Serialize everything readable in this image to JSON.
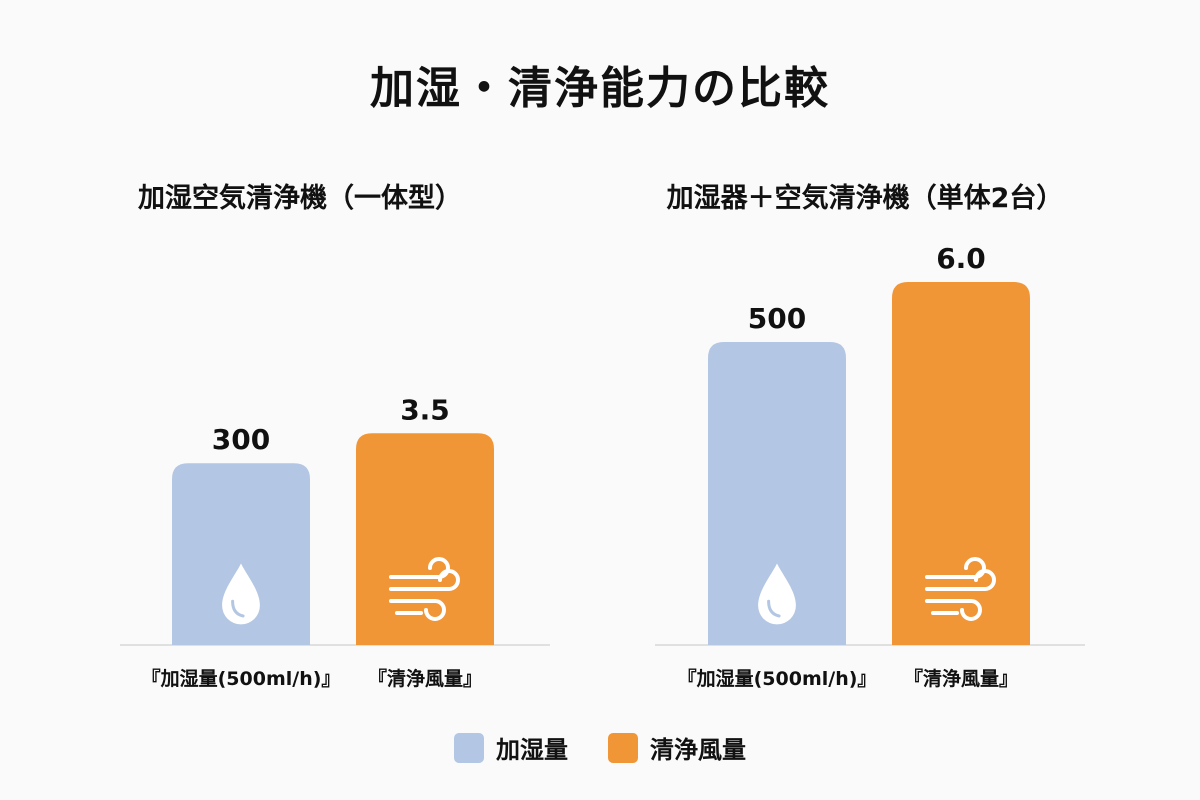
{
  "title": "加湿・清浄能力の比較",
  "colors": {
    "humidify": "#b3c6e3",
    "purify": "#f09637",
    "axis": "#d8d8d8",
    "icon": "#ffffff"
  },
  "legend": [
    {
      "label": "加湿量",
      "color": "#b3c6e3"
    },
    {
      "label": "清浄風量",
      "color": "#f09637"
    }
  ],
  "chart_data": [
    {
      "type": "bar",
      "title": "加湿空気清浄機（一体型）",
      "categories": [
        "『加湿量(500ml/h)』",
        "『清浄風量』"
      ],
      "values": [
        300,
        3.5
      ],
      "data_labels": [
        "300",
        "3.5"
      ],
      "icons": [
        "water-drop-icon",
        "wind-icon"
      ],
      "legend_position": "bottom",
      "grid": false
    },
    {
      "type": "bar",
      "title": "加湿器＋空気清浄機（単体2台）",
      "categories": [
        "『加湿量(500ml/h)』",
        "『清浄風量』"
      ],
      "values": [
        500,
        6.0
      ],
      "data_labels": [
        "500",
        "6.0"
      ],
      "icons": [
        "water-drop-icon",
        "wind-icon"
      ],
      "legend_position": "bottom",
      "grid": false
    }
  ]
}
